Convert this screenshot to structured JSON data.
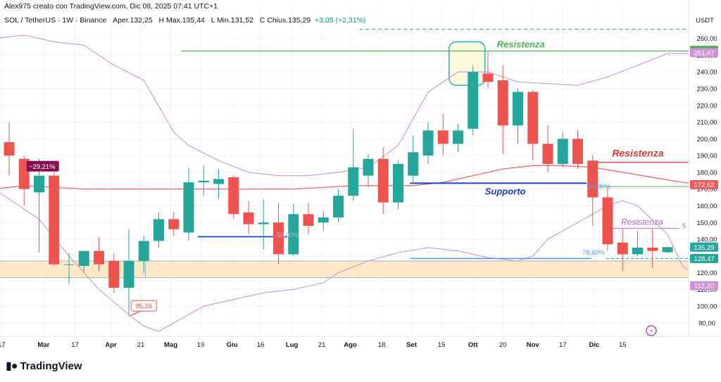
{
  "header": {
    "credit": "Alex975 creato con TradingView.com, Dic 08, 2025 07:41 UTC+1",
    "symbol": "SOL / TetherUS · 1W · Binance",
    "open_label": "O",
    "open": "Aper.132,25",
    "high_label": "H",
    "high": "Max.135,44",
    "low_label": "L",
    "low": "Min.131,52",
    "close_label": "C",
    "close": "Chius.135,29",
    "change": "+3,05 (+2,31%)"
  },
  "branding": {
    "logo_text": "TradingView"
  },
  "colors": {
    "up": "#26a69a",
    "down": "#ef5350",
    "bollinger": "#ce93d8",
    "ma": "#f05b5b",
    "support": "#1c3fd1",
    "resistance_green": "#4caf50",
    "resistance_red": "#e53935",
    "fib_blue": "#5b9bd5",
    "demand_zone": "#fde9c8"
  },
  "chart_data": {
    "type": "candlestick",
    "title": "SOL / TetherUS · 1W · Binance",
    "ylabel": "USDT",
    "ylim": [
      82,
      267
    ],
    "y_ticks": [
      90,
      100,
      110,
      120,
      130,
      140,
      150,
      160,
      170,
      180,
      190,
      200,
      210,
      220,
      230,
      240,
      250,
      260
    ],
    "x_ticks": [
      {
        "label": "17",
        "i": -0.5
      },
      {
        "label": "Mar",
        "i": 2.3
      },
      {
        "label": "17",
        "i": 4.4
      },
      {
        "label": "Apr",
        "i": 6.8
      },
      {
        "label": "21",
        "i": 8.8
      },
      {
        "label": "Mag",
        "i": 10.8
      },
      {
        "label": "19",
        "i": 12.8
      },
      {
        "label": "Giu",
        "i": 14.9
      },
      {
        "label": "16",
        "i": 16.8
      },
      {
        "label": "Lug",
        "i": 18.9
      },
      {
        "label": "21",
        "i": 20.9
      },
      {
        "label": "Ago",
        "i": 22.8
      },
      {
        "label": "18",
        "i": 24.9
      },
      {
        "label": "Set",
        "i": 26.9
      },
      {
        "label": "15",
        "i": 28.9
      },
      {
        "label": "Ott",
        "i": 31.0
      },
      {
        "label": "20",
        "i": 33.0
      },
      {
        "label": "Nov",
        "i": 35.0
      },
      {
        "label": "17",
        "i": 37.0
      },
      {
        "label": "Dic",
        "i": 39.1
      },
      {
        "label": "15",
        "i": 41.0
      }
    ],
    "candles": [
      {
        "o": 198,
        "h": 210,
        "l": 178,
        "c": 190
      },
      {
        "o": 188,
        "h": 190,
        "l": 160,
        "c": 170
      },
      {
        "o": 168,
        "h": 188,
        "l": 132,
        "c": 178
      },
      {
        "o": 178,
        "h": 180,
        "l": 124,
        "c": 125
      },
      {
        "o": 125,
        "h": 132,
        "l": 113,
        "c": 125
      },
      {
        "o": 124,
        "h": 133,
        "l": 120,
        "c": 133
      },
      {
        "o": 133,
        "h": 141,
        "l": 121,
        "c": 125
      },
      {
        "o": 127,
        "h": 132,
        "l": 108,
        "c": 111
      },
      {
        "o": 111,
        "h": 146,
        "l": 95.26,
        "c": 127
      },
      {
        "o": 127,
        "h": 142,
        "l": 120,
        "c": 139
      },
      {
        "o": 139,
        "h": 156,
        "l": 135,
        "c": 152
      },
      {
        "o": 152,
        "h": 156,
        "l": 142,
        "c": 146
      },
      {
        "o": 144,
        "h": 183,
        "l": 139,
        "c": 174
      },
      {
        "o": 174,
        "h": 184,
        "l": 166,
        "c": 175
      },
      {
        "o": 173,
        "h": 182,
        "l": 164,
        "c": 176
      },
      {
        "o": 177,
        "h": 178,
        "l": 152,
        "c": 155
      },
      {
        "o": 156,
        "h": 163,
        "l": 143,
        "c": 149
      },
      {
        "o": 149,
        "h": 164,
        "l": 134,
        "c": 150
      },
      {
        "o": 150,
        "h": 162,
        "l": 125,
        "c": 131
      },
      {
        "o": 131,
        "h": 161,
        "l": 130,
        "c": 155
      },
      {
        "o": 155,
        "h": 162,
        "l": 143,
        "c": 148
      },
      {
        "o": 150,
        "h": 157,
        "l": 145,
        "c": 153
      },
      {
        "o": 153,
        "h": 170,
        "l": 150,
        "c": 166
      },
      {
        "o": 166,
        "h": 206,
        "l": 163,
        "c": 183
      },
      {
        "o": 178,
        "h": 191,
        "l": 171,
        "c": 188
      },
      {
        "o": 188,
        "h": 195,
        "l": 155,
        "c": 162
      },
      {
        "o": 162,
        "h": 187,
        "l": 158,
        "c": 185
      },
      {
        "o": 178,
        "h": 202,
        "l": 173,
        "c": 192
      },
      {
        "o": 190,
        "h": 210,
        "l": 185,
        "c": 205
      },
      {
        "o": 205,
        "h": 215,
        "l": 190,
        "c": 197
      },
      {
        "o": 197,
        "h": 209,
        "l": 192,
        "c": 205
      },
      {
        "o": 206,
        "h": 244,
        "l": 202,
        "c": 240
      },
      {
        "o": 239,
        "h": 252,
        "l": 230,
        "c": 234
      },
      {
        "o": 235,
        "h": 244,
        "l": 191,
        "c": 208
      },
      {
        "o": 208,
        "h": 230,
        "l": 197,
        "c": 228
      },
      {
        "o": 228,
        "h": 229,
        "l": 187,
        "c": 197
      },
      {
        "o": 197,
        "h": 208,
        "l": 180,
        "c": 185
      },
      {
        "o": 185,
        "h": 204,
        "l": 183,
        "c": 200
      },
      {
        "o": 200,
        "h": 205,
        "l": 182,
        "c": 185
      },
      {
        "o": 187,
        "h": 190,
        "l": 148,
        "c": 165
      },
      {
        "o": 165,
        "h": 171,
        "l": 133,
        "c": 137
      },
      {
        "o": 138,
        "h": 146,
        "l": 121,
        "c": 131
      },
      {
        "o": 131,
        "h": 145,
        "l": 130,
        "c": 135
      },
      {
        "o": 135,
        "h": 146,
        "l": 123,
        "c": 133
      },
      {
        "o": 132.25,
        "h": 135.44,
        "l": 131.52,
        "c": 135.29
      }
    ],
    "bollinger_upper": [
      [
        -1,
        260
      ],
      [
        1,
        262
      ],
      [
        3,
        258
      ],
      [
        5,
        256
      ],
      [
        7,
        244
      ],
      [
        9,
        235
      ],
      [
        11,
        204
      ],
      [
        12,
        196
      ],
      [
        14,
        187
      ],
      [
        16,
        180
      ],
      [
        18,
        178
      ],
      [
        20,
        178
      ],
      [
        22,
        180
      ],
      [
        24,
        183
      ],
      [
        26,
        196
      ],
      [
        28,
        228
      ],
      [
        30,
        240
      ],
      [
        32,
        240
      ],
      [
        34,
        234
      ],
      [
        36,
        233
      ],
      [
        38,
        232
      ],
      [
        40,
        237
      ],
      [
        42,
        244
      ],
      [
        44,
        251
      ],
      [
        46,
        251
      ],
      [
        47,
        250
      ]
    ],
    "bollinger_lower": [
      [
        -1,
        170
      ],
      [
        2,
        152
      ],
      [
        4,
        130
      ],
      [
        6,
        110
      ],
      [
        8,
        95
      ],
      [
        9,
        88
      ],
      [
        10,
        85
      ],
      [
        11,
        90
      ],
      [
        13,
        100
      ],
      [
        15,
        104
      ],
      [
        17,
        108
      ],
      [
        19,
        110
      ],
      [
        21,
        114
      ],
      [
        22,
        120
      ],
      [
        24,
        127
      ],
      [
        26,
        132
      ],
      [
        28,
        135
      ],
      [
        30,
        133
      ],
      [
        32,
        129
      ],
      [
        34,
        127
      ],
      [
        35,
        130
      ],
      [
        36,
        140
      ],
      [
        38,
        150
      ],
      [
        40,
        160
      ],
      [
        41,
        163
      ],
      [
        42,
        160
      ],
      [
        44,
        143
      ],
      [
        45,
        124
      ],
      [
        46,
        118
      ],
      [
        47,
        112
      ]
    ],
    "moving_average": [
      [
        -1,
        170
      ],
      [
        1,
        172
      ],
      [
        3,
        171
      ],
      [
        5,
        170
      ],
      [
        7,
        170
      ],
      [
        9,
        170
      ],
      [
        11,
        170
      ],
      [
        13,
        170
      ],
      [
        15,
        170
      ],
      [
        17,
        170
      ],
      [
        19,
        170
      ],
      [
        21,
        171
      ],
      [
        23,
        172
      ],
      [
        25,
        172
      ],
      [
        27,
        172
      ],
      [
        29,
        174
      ],
      [
        31,
        178
      ],
      [
        33,
        182
      ],
      [
        35,
        184
      ],
      [
        37,
        184
      ],
      [
        39,
        183
      ],
      [
        41,
        180
      ],
      [
        43,
        177
      ],
      [
        45,
        174
      ],
      [
        47,
        172
      ]
    ],
    "price_axis_labels": [
      {
        "value": 252.84,
        "label": "252,84",
        "bg": "#4caf50",
        "fg": "#000000"
      },
      {
        "value": 251.47,
        "label": "251,47",
        "bg": "#ce93d8",
        "fg": "#ffffff"
      },
      {
        "value": 172.63,
        "label": "172,63",
        "bg": "#f05b5b",
        "fg": "#ffffff"
      },
      {
        "value": 135.29,
        "label": "135,29",
        "bg": "#26a69a",
        "fg": "#ffffff"
      },
      {
        "value": 128.47,
        "label": "128,47",
        "bg": "#26a69a",
        "fg": "#ffffff"
      },
      {
        "value": 112.2,
        "label": "112,20",
        "bg": "#ce93d8",
        "fg": "#ffffff"
      }
    ],
    "annotations": {
      "resistance_top": {
        "label": "Resistenza",
        "value": 252.5,
        "from_i": 11.5,
        "to_i": 46.7
      },
      "resistance_mid": {
        "label": "Resistenza",
        "value": 186,
        "from_i": 38.8,
        "to_i": 46.7
      },
      "resistance_small": {
        "label": "Resistenza",
        "value": 146.5,
        "from_i": 40.2,
        "to_i": 44.8
      },
      "support": {
        "label": "Supporto",
        "value": 173.5,
        "from_i": 26.8,
        "to_i": 38.6
      },
      "green_line_172": {
        "value": 171.5,
        "from_i": 38.6,
        "to_i": 46.7
      },
      "blue_line_141": {
        "value": 141.5,
        "from_i": 12.6,
        "to_i": 18.6
      },
      "blue_line_128": {
        "value": 128.5,
        "from_i": 26.8,
        "to_i": 38.9
      },
      "top_dashed": {
        "value": 265.5,
        "from_i": 23.4,
        "to_i": 46.7
      },
      "demand_zone": {
        "from_value": 117,
        "to_value": 127,
        "from_i": -1,
        "to_i": 46.7
      },
      "price_dashed": {
        "value": 128.47,
        "from_i": 39.9,
        "to_i": 46.7
      },
      "drawdown_badge": {
        "label": "−29,21%",
        "value": 183,
        "i": 2.2
      },
      "low_badge": {
        "label": "95,26",
        "value": 100,
        "i": 8.9
      },
      "fib_786": {
        "label": "78,60%",
        "value": 132.5,
        "i": 38.3
      },
      "fib_50": {
        "label": "50,00%",
        "value": 172,
        "i": 38.3
      },
      "fib_50_faint": {
        "label": "50,00%",
        "value": 143,
        "i": 17.9
      },
      "small_5": {
        "label": "5",
        "value": 148,
        "i": 44.9
      },
      "highlight_box": {
        "i_from": 29.4,
        "i_to": 31.8,
        "v_from": 232,
        "v_to": 258
      }
    }
  }
}
